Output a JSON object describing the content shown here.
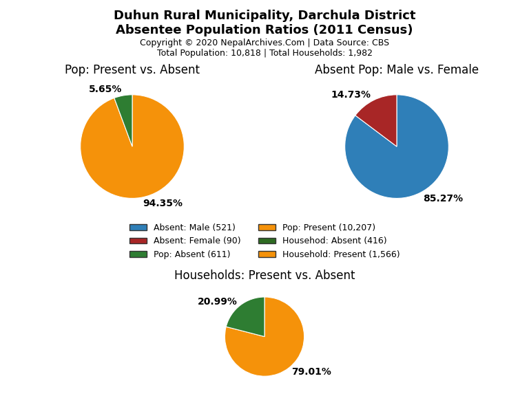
{
  "title": "Duhun Rural Municipality, Darchula District",
  "subtitle": "Absentee Population Ratios (2011 Census)",
  "annotations": [
    "Copyright © 2020 NepalArchives.Com | Data Source: CBS",
    "Total Population: 10,818 | Total Households: 1,982"
  ],
  "legend": "upper center",
  "series": [
    {
      "name": "Absent: Male (521)",
      "color": "#2f7fb8"
    },
    {
      "name": "Absent: Female (90)",
      "color": "#a82626"
    },
    {
      "name": "Pop: Absent (611)",
      "color": "#2e7d32"
    },
    {
      "name": "Pop: Present (10,207)",
      "color": "#f5920a"
    },
    {
      "name": "Househod: Absent (416)",
      "color": "#2e6b22"
    },
    {
      "name": "Household: Present (1,566)",
      "color": "#f5920a"
    }
  ],
  "chart_data": [
    {
      "type": "pie",
      "title": "Pop: Present vs. Absent",
      "values": [
        94.35,
        5.65
      ],
      "value_labels": [
        "94.35%",
        "5.65%"
      ],
      "colors": [
        "#f5920a",
        "#2e7d32"
      ],
      "data_labels": true
    },
    {
      "type": "pie",
      "title": "Absent Pop: Male vs. Female",
      "values": [
        85.27,
        14.73
      ],
      "value_labels": [
        "85.27%",
        "14.73%"
      ],
      "colors": [
        "#2f7fb8",
        "#a82626"
      ],
      "data_labels": true
    },
    {
      "type": "pie",
      "title": "Households: Present vs. Absent",
      "values": [
        79.01,
        20.99
      ],
      "value_labels": [
        "79.01%",
        "20.99%"
      ],
      "colors": [
        "#f5920a",
        "#2e7d32"
      ],
      "data_labels": true
    }
  ]
}
